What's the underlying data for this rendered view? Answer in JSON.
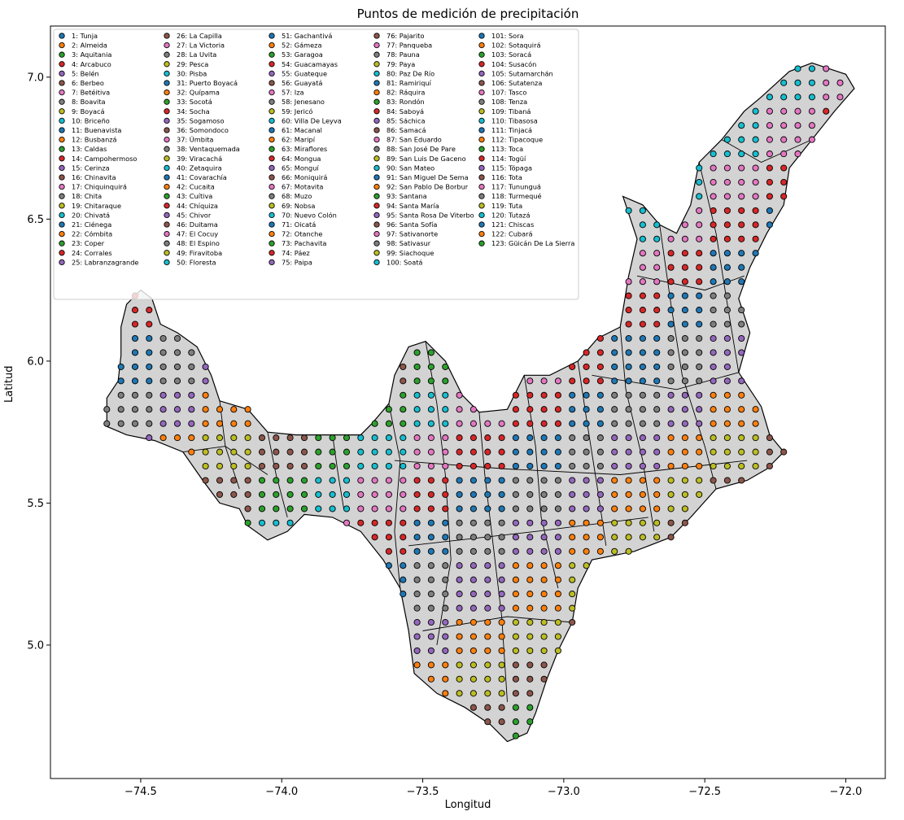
{
  "chart_data": {
    "type": "scatter",
    "title": "Puntos de medición de precipitación",
    "xlabel": "Longitud",
    "ylabel": "Latitud",
    "xlim": [
      -74.82,
      -71.86
    ],
    "ylim": [
      4.53,
      7.18
    ],
    "xticks": [
      -74.5,
      -74.0,
      -73.5,
      -73.0,
      -72.5,
      -72.0
    ],
    "xtick_labels": [
      "−74.5",
      "−74.0",
      "−73.5",
      "−73.0",
      "−72.5",
      "−72.0"
    ],
    "yticks": [
      5.0,
      5.5,
      6.0,
      6.5,
      7.0
    ],
    "ytick_labels": [
      "5.0",
      "5.5",
      "6.0",
      "6.5",
      "7.0"
    ],
    "grid": false,
    "legend_position": "top-left",
    "legend_columns": 5,
    "background_fill": "#d3d3d3",
    "boundary_color": "#000000",
    "palette": [
      "#1f77b4",
      "#ff7f0e",
      "#2ca02c",
      "#d62728",
      "#9467bd",
      "#8c564b",
      "#e377c2",
      "#7f7f7f",
      "#bcbd22",
      "#17becf"
    ],
    "series": [
      "1: Tunja",
      "2: Almeida",
      "3: Aquitania",
      "4: Arcabuco",
      "5: Belén",
      "6: Berbeo",
      "7: Betéitiva",
      "8: Boavita",
      "9: Boyacá",
      "10: Briceño",
      "11: Buenavista",
      "12: Busbanzá",
      "13: Caldas",
      "14: Campohermoso",
      "15: Cerinza",
      "16: Chinavita",
      "17: Chiquinquirá",
      "18: Chita",
      "19: Chitaraque",
      "20: Chivatá",
      "21: Ciénega",
      "22: Cómbita",
      "23: Coper",
      "24: Corrales",
      "25: Labranzagrande",
      "26: La Capilla",
      "27: La Victoria",
      "28: La Uvita",
      "29: Pesca",
      "30: Pisba",
      "31: Puerto Boyacá",
      "32: Quípama",
      "33: Socotá",
      "34: Socha",
      "35: Sogamoso",
      "36: Somondoco",
      "37: Úmbita",
      "38: Ventaquemada",
      "39: Viracachá",
      "40: Zetaquira",
      "41: Covarachía",
      "42: Cucaita",
      "43: Cuítiva",
      "44: Chíquiza",
      "45: Chivor",
      "46: Duitama",
      "47: El Cocuy",
      "48: El Espino",
      "49: Firavitoba",
      "50: Floresta",
      "51: Gachantivá",
      "52: Gámeza",
      "53: Garagoa",
      "54: Guacamayas",
      "55: Guateque",
      "56: Guayatá",
      "57: Iza",
      "58: Jenesano",
      "59: Jericó",
      "60: Villa De Leyva",
      "61: Macanal",
      "62: Maripí",
      "63: Miraflores",
      "64: Mongua",
      "65: Monguí",
      "66: Moniquirá",
      "67: Motavita",
      "68: Muzo",
      "69: Nobsa",
      "70: Nuevo Colón",
      "71: Oicatá",
      "72: Otanche",
      "73: Pachavita",
      "74: Páez",
      "75: Paipa",
      "76: Pajarito",
      "77: Panqueba",
      "78: Pauna",
      "79: Paya",
      "80: Paz De Río",
      "81: Ramiriquí",
      "82: Ráquira",
      "83: Rondón",
      "84: Saboyá",
      "85: Sáchica",
      "86: Samacá",
      "87: San Eduardo",
      "88: San José De Pare",
      "89: San Luis De Gaceno",
      "90: San Mateo",
      "91: San Miguel De Sema",
      "92: San Pablo De Borbur",
      "93: Santana",
      "94: Santa María",
      "95: Santa Rosa De Viterbo",
      "96: Santa Sofía",
      "97: Sativanorte",
      "98: Sativasur",
      "99: Siachoque",
      "100: Soatá",
      "101: Sora",
      "102: Sotaquirá",
      "103: Soracá",
      "104: Susacón",
      "105: Sutamarchán",
      "106: Sutatenza",
      "107: Tasco",
      "108: Tenza",
      "109: Tibaná",
      "110: Tibasosa",
      "111: Tinjacá",
      "112: Tipacoque",
      "113: Toca",
      "114: Togüí",
      "115: Tópaga",
      "116: Tota",
      "117: Tununguá",
      "118: Turmequé",
      "119: Tuta",
      "120: Tutazá",
      "121: Chiscas",
      "122: Cubará",
      "123: Güicán De La Sierra"
    ],
    "point_grid_spacing_deg": 0.05
  }
}
